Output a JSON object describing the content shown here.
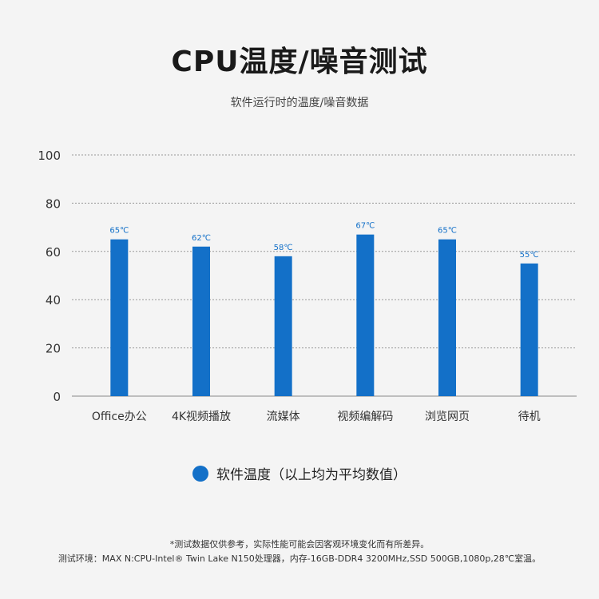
{
  "header": {
    "title": "CPU温度/噪音测试",
    "subtitle": "软件运行时的温度/噪音数据"
  },
  "chart_data": {
    "type": "bar",
    "categories": [
      "Office办公",
      "4K视频播放",
      "流媒体",
      "视频编解码",
      "浏览网页",
      "待机"
    ],
    "values": [
      65,
      62,
      58,
      67,
      65,
      55
    ],
    "data_labels": [
      "65℃",
      "62℃",
      "58℃",
      "67℃",
      "65℃",
      "55℃"
    ],
    "ylim": [
      0,
      100
    ],
    "yticks": [
      0,
      20,
      40,
      60,
      80,
      100
    ],
    "grid": "dashed horizontal",
    "legend_placement": "bottom-center",
    "series": [
      {
        "name": "软件温度（以上均为平均数值）",
        "color": "#1370c8"
      }
    ]
  },
  "legend": {
    "label": "软件温度（以上均为平均数值）",
    "color": "#1370c8"
  },
  "footnotes": {
    "line1": "*测试数据仅供参考，实际性能可能会因客观环境变化而有所差异。",
    "line2": "测试环境：MAX N:CPU-Intel® Twin Lake N150处理器，内存-16GB-DDR4 3200MHz,SSD 500GB,1080p,28℃室温。"
  },
  "colors": {
    "bar": "#1370c8",
    "label": "#1370c8",
    "grid": "#999999"
  }
}
